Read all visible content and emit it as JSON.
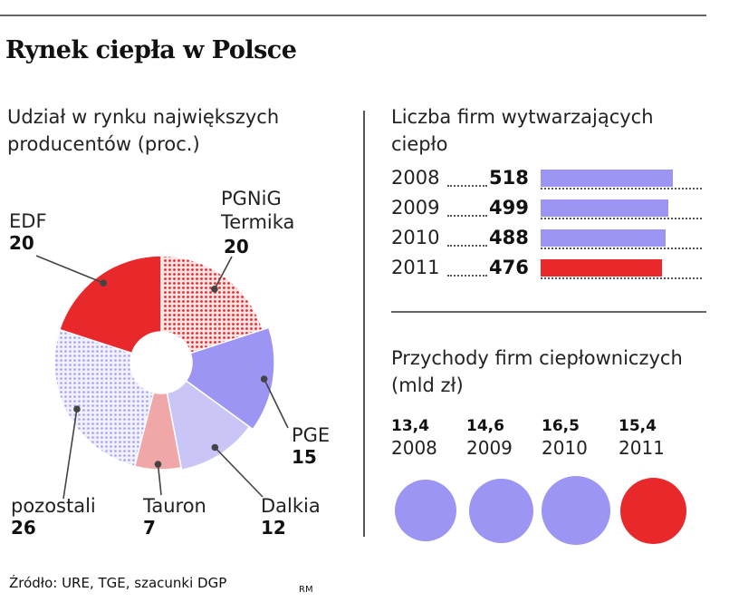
{
  "title": "Rynek ciepła w Polsce",
  "source": "Źródło: URE, TGE, szacunki DGP",
  "author": "RM",
  "colors": {
    "red": "#e8282b",
    "purple": "#9d95f3",
    "lavender": "#c9c6f7",
    "pink": "#efa7a7",
    "dot_red": "#e8282b",
    "dot_purple": "#9d95f3"
  },
  "chart_data": [
    {
      "type": "pie",
      "title": "Udział w rynku największych producentów (proc.)",
      "slices": [
        {
          "label": "PGNiG Termika",
          "value": 20
        },
        {
          "label": "PGE",
          "value": 15
        },
        {
          "label": "Dalkia",
          "value": 12
        },
        {
          "label": "Tauron",
          "value": 7
        },
        {
          "label": "pozostali",
          "value": 26
        },
        {
          "label": "EDF",
          "value": 20
        }
      ]
    },
    {
      "type": "bar",
      "title": "Liczba firm wytwarzających ciepło",
      "categories": [
        "2008",
        "2009",
        "2010",
        "2011"
      ],
      "values": [
        518,
        499,
        488,
        476
      ]
    },
    {
      "type": "bar",
      "title": "Przychody firm ciepłowniczych (mld zł)",
      "categories": [
        "2008",
        "2009",
        "2010",
        "2011"
      ],
      "values": [
        "13,4",
        "14,6",
        "16,5",
        "15,4"
      ]
    }
  ]
}
